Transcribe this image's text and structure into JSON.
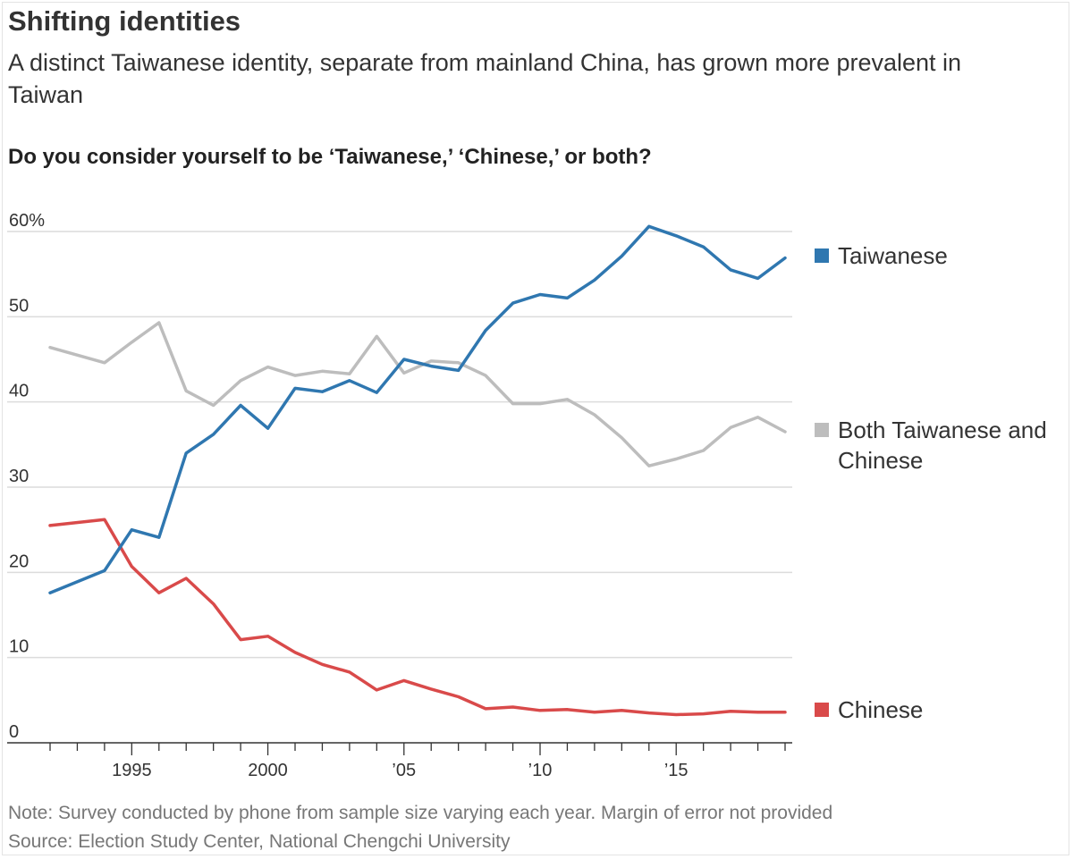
{
  "title": "Shifting identities",
  "subtitle": "A distinct Taiwanese identity, separate from mainland China, has grown more prevalent in Taiwan",
  "question": "Do you consider yourself to be ‘Taiwanese,’ ‘Chinese,’ or both?",
  "note": "Note: Survey conducted by phone from sample size varying each year. Margin of error not provided",
  "source": "Source: Election Study Center, National Chengchi University",
  "chart_data": {
    "type": "line",
    "title": "Do you consider yourself to be ‘Taiwanese,’ ‘Chinese,’ or both?",
    "xlabel": "",
    "ylabel": "",
    "xlim": [
      1992,
      2019
    ],
    "ylim": [
      0,
      60
    ],
    "grid": true,
    "y_ticks": [
      {
        "value": 0,
        "label": "0"
      },
      {
        "value": 10,
        "label": "10"
      },
      {
        "value": 20,
        "label": "20"
      },
      {
        "value": 30,
        "label": "30"
      },
      {
        "value": 40,
        "label": "40"
      },
      {
        "value": 50,
        "label": "50"
      },
      {
        "value": 60,
        "label": "60%"
      }
    ],
    "x_ticks": [
      {
        "value": 1995,
        "label": "1995"
      },
      {
        "value": 2000,
        "label": "2000"
      },
      {
        "value": 2005,
        "label": "’05"
      },
      {
        "value": 2010,
        "label": "’10"
      },
      {
        "value": 2015,
        "label": "’15"
      }
    ],
    "x": [
      1992,
      1994,
      1995,
      1996,
      1997,
      1998,
      1999,
      2000,
      2001,
      2002,
      2003,
      2004,
      2005,
      2006,
      2007,
      2008,
      2009,
      2010,
      2011,
      2012,
      2013,
      2014,
      2015,
      2016,
      2017,
      2018,
      2019
    ],
    "series": [
      {
        "name": "Taiwanese",
        "legend_label": [
          "Taiwanese"
        ],
        "color": "#2f77b0",
        "values": [
          17.6,
          20.2,
          25.0,
          24.1,
          34.0,
          36.2,
          39.6,
          36.9,
          41.6,
          41.2,
          42.5,
          41.1,
          45.0,
          44.2,
          43.7,
          48.4,
          51.6,
          52.6,
          52.2,
          54.3,
          57.1,
          60.6,
          59.5,
          58.2,
          55.5,
          54.5,
          56.9
        ]
      },
      {
        "name": "Both Taiwanese and Chinese",
        "legend_label": [
          "Both Taiwanese and",
          "Chinese"
        ],
        "color": "#bdbdbd",
        "values": [
          46.4,
          44.6,
          47.0,
          49.3,
          41.3,
          39.6,
          42.5,
          44.1,
          43.1,
          43.6,
          43.3,
          47.7,
          43.4,
          44.8,
          44.6,
          43.1,
          39.8,
          39.8,
          40.3,
          38.5,
          35.8,
          32.5,
          33.3,
          34.3,
          37.0,
          38.2,
          36.5
        ]
      },
      {
        "name": "Chinese",
        "legend_label": [
          "Chinese"
        ],
        "color": "#d94a4a",
        "values": [
          25.5,
          26.2,
          20.7,
          17.6,
          19.3,
          16.3,
          12.1,
          12.5,
          10.6,
          9.2,
          8.3,
          6.2,
          7.3,
          6.3,
          5.4,
          4.0,
          4.2,
          3.8,
          3.9,
          3.6,
          3.8,
          3.5,
          3.3,
          3.4,
          3.7,
          3.6,
          3.6
        ]
      }
    ]
  }
}
